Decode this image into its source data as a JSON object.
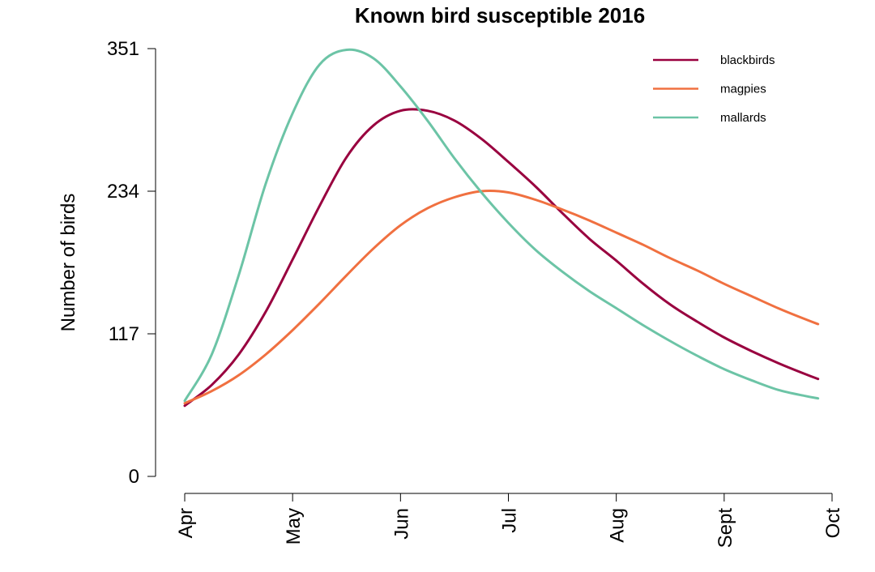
{
  "chart_data": {
    "type": "line",
    "title": "Known bird susceptible 2016",
    "xlabel": "",
    "ylabel": "Number of birds",
    "x_ticks": [
      "Apr",
      "May",
      "Jun",
      "Jul",
      "Aug",
      "Sept",
      "Oct"
    ],
    "y_ticks": [
      0,
      117,
      234,
      351
    ],
    "ylim": [
      0,
      351
    ],
    "xlim": [
      0,
      6
    ],
    "grid": false,
    "legend_position": "top-right",
    "x": [
      0,
      0.25,
      0.5,
      0.75,
      1,
      1.25,
      1.5,
      1.75,
      2,
      2.25,
      2.5,
      2.75,
      3,
      3.25,
      3.5,
      3.75,
      4,
      4.25,
      4.5,
      4.75,
      5,
      5.25,
      5.5,
      5.75,
      5.87
    ],
    "series": [
      {
        "name": "blackbirds",
        "color": "#99003f",
        "values": [
          58,
          75,
          100,
          135,
          178,
          222,
          262,
          288,
          300,
          300,
          292,
          277,
          258,
          238,
          216,
          195,
          177,
          158,
          141,
          127,
          114,
          103,
          93,
          84,
          80
        ]
      },
      {
        "name": "magpies",
        "color": "#f07040",
        "values": [
          60,
          70,
          83,
          100,
          120,
          142,
          165,
          187,
          206,
          220,
          229,
          234,
          233,
          227,
          219,
          210,
          200,
          190,
          179,
          169,
          158,
          148,
          138,
          129,
          125
        ]
      },
      {
        "name": "mallards",
        "color": "#6cc4a6",
        "values": [
          62,
          100,
          165,
          240,
          298,
          338,
          350,
          343,
          320,
          292,
          261,
          233,
          208,
          186,
          168,
          152,
          138,
          124,
          111,
          99,
          88,
          79,
          71,
          66,
          64
        ]
      }
    ]
  }
}
